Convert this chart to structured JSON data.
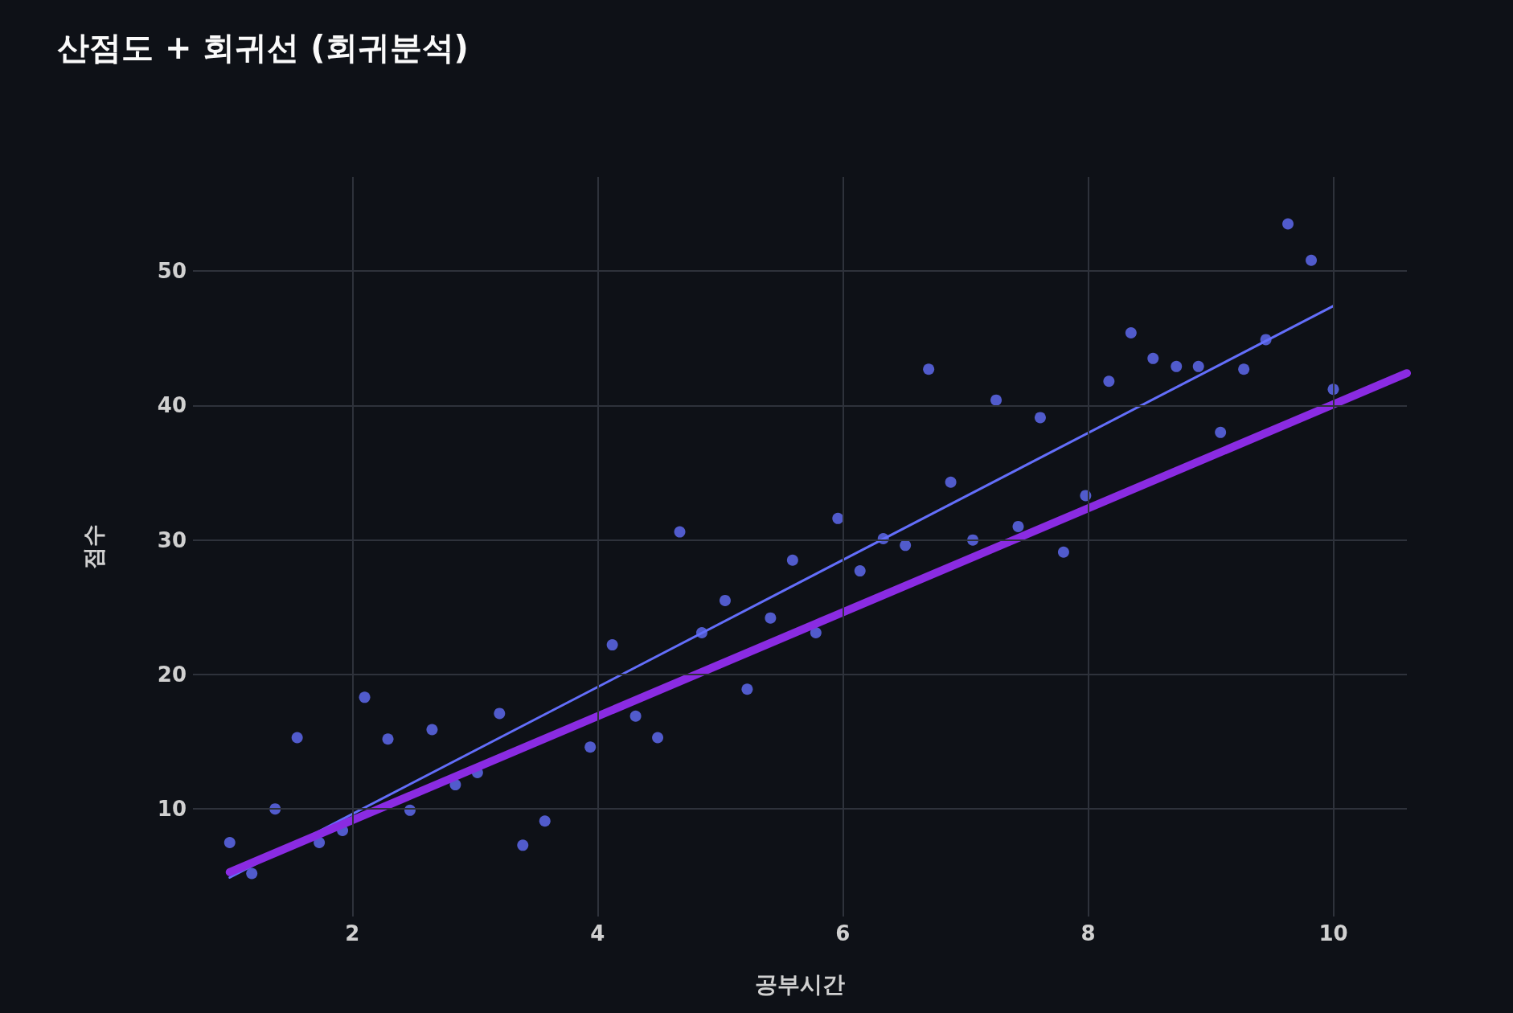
{
  "chart_data": {
    "type": "scatter",
    "title": "산점도 + 회귀선 (회귀분석)",
    "xlabel": "공부시간",
    "ylabel": "점수",
    "xlim": [
      0.7,
      10.6
    ],
    "ylim": [
      2,
      57
    ],
    "xticks": [
      2,
      4,
      6,
      8,
      10
    ],
    "yticks": [
      10,
      20,
      30,
      40,
      50
    ],
    "grid": true,
    "series": [
      {
        "marker": "circle",
        "color": "#636efa",
        "x": [
          1.0,
          1.18,
          1.37,
          1.55,
          1.73,
          1.92,
          2.1,
          2.29,
          2.47,
          2.65,
          2.84,
          3.02,
          3.2,
          3.39,
          3.57,
          3.94,
          4.12,
          4.31,
          4.49,
          4.67,
          4.85,
          5.04,
          5.22,
          5.41,
          5.59,
          5.78,
          5.96,
          6.14,
          6.33,
          6.51,
          6.7,
          6.88,
          7.06,
          7.25,
          7.43,
          7.61,
          7.8,
          7.98,
          8.17,
          8.35,
          8.53,
          8.72,
          8.9,
          9.08,
          9.27,
          9.45,
          9.63,
          9.82,
          10.0
        ],
        "values": [
          7.5,
          5.2,
          10.0,
          15.3,
          7.5,
          8.4,
          18.3,
          15.2,
          9.9,
          15.9,
          11.8,
          12.7,
          17.1,
          7.3,
          9.1,
          14.6,
          22.2,
          16.9,
          15.3,
          30.6,
          23.1,
          25.5,
          18.9,
          24.2,
          28.5,
          23.1,
          31.6,
          27.7,
          30.1,
          29.6,
          42.7,
          34.3,
          30.0,
          40.4,
          31.0,
          39.1,
          29.1,
          33.3,
          41.8,
          45.4,
          43.5,
          42.9,
          42.9,
          38.0,
          42.7,
          44.9,
          53.5,
          50.8,
          41.2
        ]
      },
      {
        "type": "line",
        "marker": "none",
        "color": "#636efa",
        "x": [
          1.0,
          10.0
        ],
        "values": [
          4.9,
          47.4
        ]
      },
      {
        "type": "line",
        "marker": "none",
        "color": "#8a2be2",
        "x": [
          1.0,
          10.6
        ],
        "values": [
          5.3,
          42.4
        ]
      }
    ]
  }
}
